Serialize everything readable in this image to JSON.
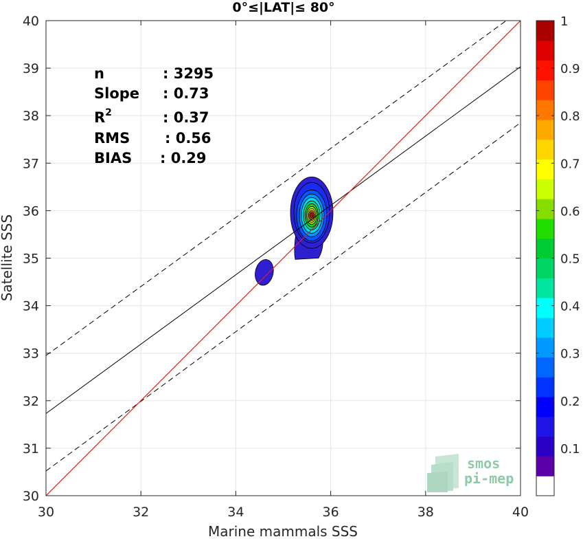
{
  "chart_data": {
    "type": "scatter",
    "title": "0°≤|LAT|≤ 80°",
    "xlabel": "Marine mammals SSS",
    "ylabel": "Satellite SSS",
    "xlim": [
      30,
      40
    ],
    "ylim": [
      30,
      40
    ],
    "xticks": [
      "30",
      "32",
      "34",
      "36",
      "38",
      "40"
    ],
    "yticks": [
      "30",
      "31",
      "32",
      "33",
      "34",
      "35",
      "36",
      "37",
      "38",
      "39",
      "40"
    ],
    "grid": true,
    "stats": [
      {
        "label": "n",
        "value": ": 3295"
      },
      {
        "label": "Slope",
        "value": ": 0.73"
      },
      {
        "label": "R",
        "sup": "2",
        "value": ": 0.37"
      },
      {
        "label": "RMS",
        "value": ": 0.56"
      },
      {
        "label": "BIAS",
        "value": ": 0.29"
      }
    ],
    "lines": {
      "identity": {
        "slope": 1,
        "intercept": 0,
        "color": "#e8171b"
      },
      "regression": {
        "slope": 0.73,
        "x0": 30,
        "y0": 31.73,
        "color": "#000000"
      },
      "upper_bound": {
        "x0": 30,
        "y0": 32.95,
        "x1": 39.7,
        "y1": 40
      },
      "lower_bound": {
        "x0": 30,
        "y0": 30.52,
        "x1": 40,
        "y1": 37.85
      }
    },
    "density_contours": {
      "main_peak": {
        "x": 35.6,
        "y": 35.9
      },
      "secondary_blob": {
        "x": 34.6,
        "y": 34.7
      }
    },
    "colorbar": {
      "ticks": [
        "0.1",
        "0.2",
        "0.3",
        "0.4",
        "0.5",
        "0.6",
        "0.7",
        "0.8",
        "0.9",
        "1"
      ],
      "range": [
        0,
        1
      ],
      "colors": [
        "#ffffff",
        "#5a00a8",
        "#2a00c8",
        "#1f14e6",
        "#0000ff",
        "#0033ff",
        "#0066ff",
        "#0099ff",
        "#00ccff",
        "#00ffff",
        "#00e6a0",
        "#00d464",
        "#00cc33",
        "#22dd00",
        "#88dd00",
        "#ccff00",
        "#ffff00",
        "#ffd700",
        "#ffaa00",
        "#ff7700",
        "#ff4400",
        "#ff1100",
        "#dd0000",
        "#aa0000"
      ]
    },
    "logo": {
      "line1": "smos",
      "line2": "pi-mep"
    }
  }
}
